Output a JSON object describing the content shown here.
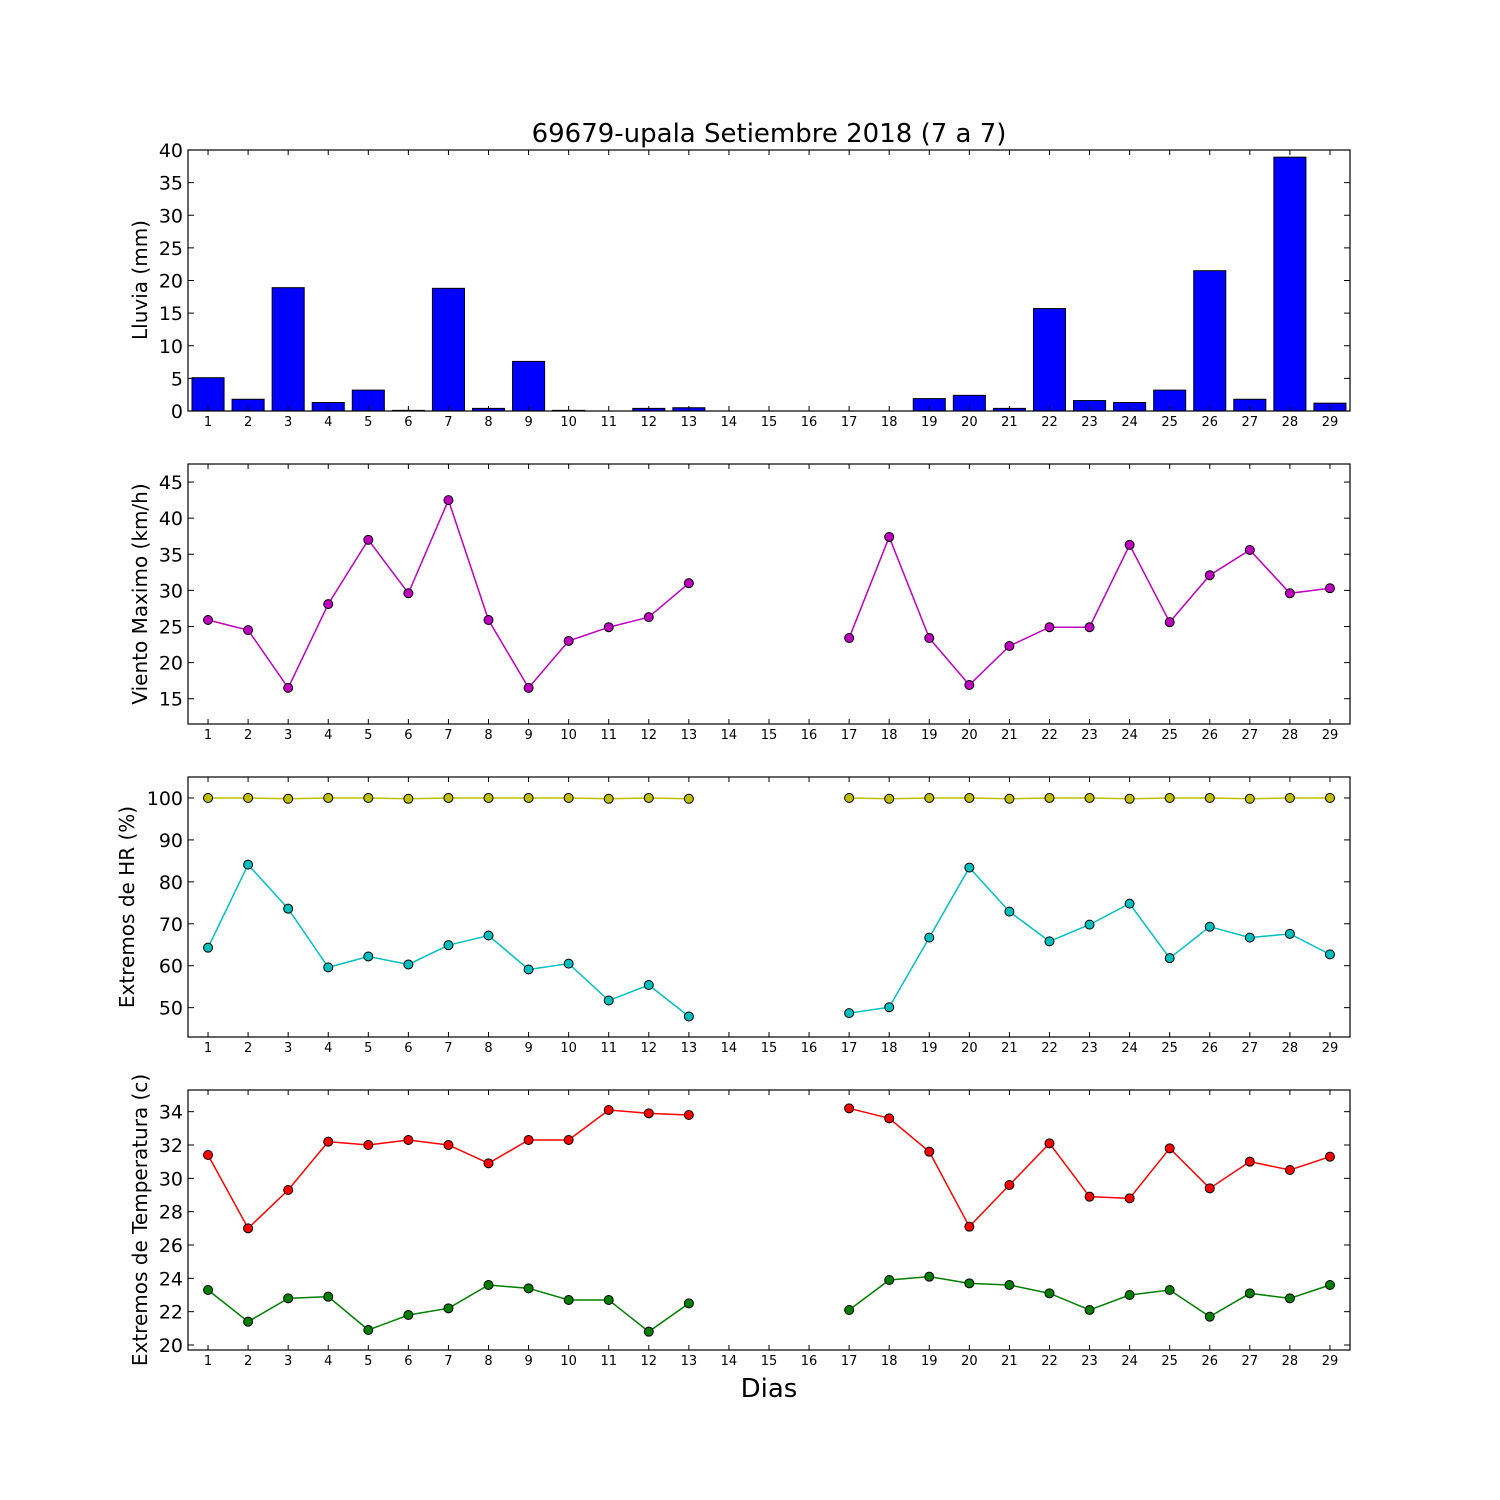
{
  "chart_data": [
    {
      "type": "bar",
      "title": "69679-upala Setiembre 2018  (7 a 7)",
      "ylabel": "Lluvia (mm)",
      "xlabel": "",
      "ylim": [
        0,
        40
      ],
      "yticks": [
        0,
        5,
        10,
        15,
        20,
        25,
        30,
        35,
        40
      ],
      "categories": [
        1,
        2,
        3,
        4,
        5,
        6,
        7,
        8,
        9,
        10,
        11,
        12,
        13,
        14,
        15,
        16,
        17,
        18,
        19,
        20,
        21,
        22,
        23,
        24,
        25,
        26,
        27,
        28,
        29
      ],
      "values": [
        5.1,
        1.8,
        18.9,
        1.3,
        3.2,
        0.1,
        18.8,
        0.4,
        7.6,
        0.1,
        0,
        0.4,
        0.5,
        0,
        0,
        0,
        0,
        0,
        1.9,
        2.4,
        0.4,
        15.7,
        1.6,
        1.3,
        3.2,
        21.5,
        1.8,
        38.9,
        1.2
      ],
      "color": "#0000ff"
    },
    {
      "type": "line",
      "title": "",
      "ylabel": "Viento Maximo (km/h)",
      "xlabel": "",
      "ylim": [
        11.5,
        47.5
      ],
      "yticks": [
        15,
        20,
        25,
        30,
        35,
        40,
        45
      ],
      "x": [
        1,
        2,
        3,
        4,
        5,
        6,
        7,
        8,
        9,
        10,
        11,
        12,
        13,
        14,
        15,
        16,
        17,
        18,
        19,
        20,
        21,
        22,
        23,
        24,
        25,
        26,
        27,
        28,
        29
      ],
      "series": [
        {
          "color": "#bf00bf",
          "values": [
            25.9,
            24.5,
            16.5,
            28.1,
            37.0,
            29.6,
            42.5,
            25.9,
            16.5,
            23.0,
            24.9,
            26.3,
            31.0,
            null,
            null,
            null,
            23.4,
            37.4,
            23.4,
            16.9,
            22.3,
            24.9,
            24.9,
            36.3,
            25.6,
            32.1,
            35.6,
            29.6,
            30.3
          ]
        }
      ]
    },
    {
      "type": "line",
      "title": "",
      "ylabel": "Extremos de HR (%)",
      "xlabel": "",
      "ylim": [
        43,
        105
      ],
      "yticks": [
        50,
        60,
        70,
        80,
        90,
        100
      ],
      "x": [
        1,
        2,
        3,
        4,
        5,
        6,
        7,
        8,
        9,
        10,
        11,
        12,
        13,
        14,
        15,
        16,
        17,
        18,
        19,
        20,
        21,
        22,
        23,
        24,
        25,
        26,
        27,
        28,
        29
      ],
      "series": [
        {
          "color": "#bfbf00",
          "values": [
            100,
            100,
            99.8,
            100,
            100,
            99.8,
            100,
            100,
            100,
            100,
            99.8,
            100,
            99.8,
            null,
            null,
            null,
            100,
            99.8,
            100,
            100,
            99.8,
            100,
            100,
            99.8,
            100,
            100,
            99.8,
            100,
            100
          ]
        },
        {
          "color": "#00bfbf",
          "values": [
            64.3,
            84.1,
            73.6,
            59.6,
            62.2,
            60.3,
            64.9,
            67.2,
            59.1,
            60.5,
            51.7,
            55.4,
            47.9,
            null,
            null,
            null,
            48.7,
            50.1,
            66.7,
            83.4,
            72.9,
            65.8,
            69.8,
            74.8,
            61.8,
            69.3,
            66.7,
            67.6,
            62.7
          ]
        }
      ]
    },
    {
      "type": "line",
      "title": "",
      "ylabel": "Extremos de Temperatura (c)",
      "xlabel": "Dias",
      "ylim": [
        19.7,
        35.3
      ],
      "yticks": [
        20,
        22,
        24,
        26,
        28,
        30,
        32,
        34
      ],
      "x": [
        1,
        2,
        3,
        4,
        5,
        6,
        7,
        8,
        9,
        10,
        11,
        12,
        13,
        14,
        15,
        16,
        17,
        18,
        19,
        20,
        21,
        22,
        23,
        24,
        25,
        26,
        27,
        28,
        29
      ],
      "series": [
        {
          "color": "#ff0000",
          "values": [
            31.4,
            27.0,
            29.3,
            32.2,
            32.0,
            32.3,
            32.0,
            30.9,
            32.3,
            32.3,
            34.1,
            33.9,
            33.8,
            null,
            null,
            null,
            34.2,
            33.6,
            31.6,
            27.1,
            29.6,
            32.1,
            28.9,
            28.8,
            31.8,
            29.4,
            31.0,
            30.5,
            31.3
          ]
        },
        {
          "color": "#007f00",
          "values": [
            23.3,
            21.4,
            22.8,
            22.9,
            20.9,
            21.8,
            22.2,
            23.6,
            23.4,
            22.7,
            22.7,
            20.8,
            22.5,
            null,
            null,
            null,
            22.1,
            23.9,
            24.1,
            23.7,
            23.6,
            23.1,
            22.1,
            23.0,
            23.3,
            21.7,
            23.1,
            22.8,
            23.6
          ]
        }
      ]
    }
  ]
}
